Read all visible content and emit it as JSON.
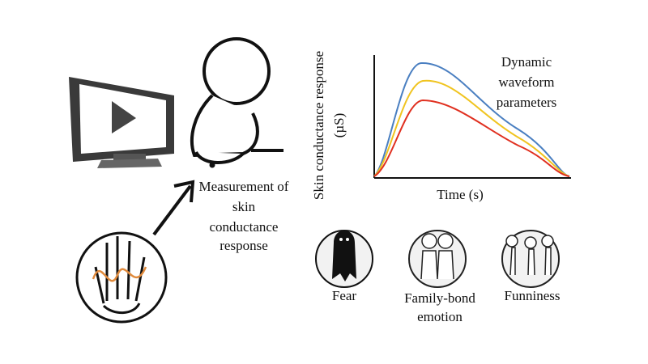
{
  "measurement_label": [
    "Measurement of",
    "skin",
    "conductance",
    "response"
  ],
  "plot": {
    "y_axis_label": [
      "Skin conductance response",
      "(µS)"
    ],
    "x_axis_label": "Time (s)",
    "annotation": [
      "Dynamic",
      "waveform",
      "parameters"
    ]
  },
  "emotions": [
    {
      "label": [
        "Fear"
      ]
    },
    {
      "label": [
        "Family-bond",
        "emotion"
      ]
    },
    {
      "label": [
        "Funniness"
      ]
    }
  ]
}
